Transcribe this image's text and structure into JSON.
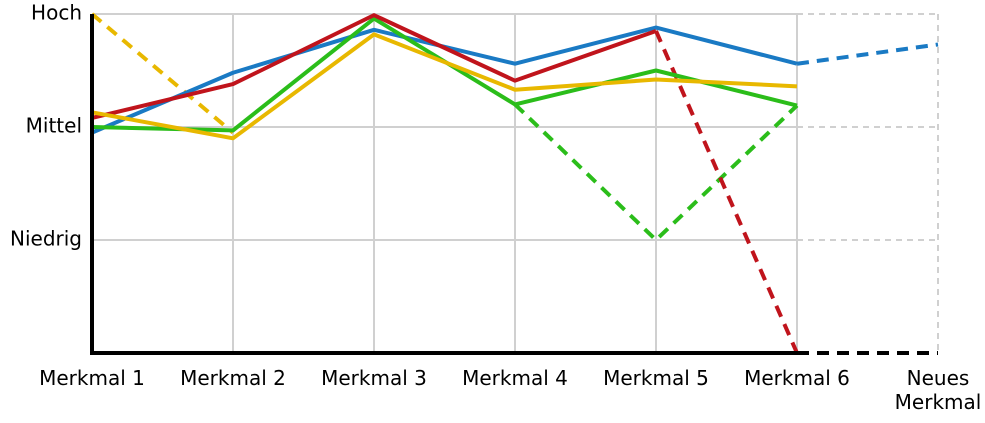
{
  "chart_data": {
    "type": "line",
    "categories": [
      "Merkmal 1",
      "Merkmal 2",
      "Merkmal 3",
      "Merkmal 4",
      "Merkmal 5",
      "Merkmal 6",
      "Neues Merkmal"
    ],
    "ylim": [
      0,
      3
    ],
    "yticks": [
      {
        "value": 1,
        "label": "Niedrig"
      },
      {
        "value": 2,
        "label": "Mittel"
      },
      {
        "value": 3,
        "label": "Hoch"
      }
    ],
    "grid": true,
    "series": [
      {
        "color": "#e8b800",
        "dashed": true,
        "values": [
          3.0,
          1.95,
          null,
          null,
          null,
          null,
          null
        ]
      },
      {
        "color": "#2bbd1a",
        "dashed": true,
        "values": [
          null,
          null,
          null,
          2.2,
          1.0,
          2.19,
          null
        ]
      },
      {
        "color": "#c0141c",
        "dashed": true,
        "values": [
          null,
          null,
          null,
          null,
          2.85,
          0,
          null
        ]
      },
      {
        "color": "#1a7ac4",
        "dashed": true,
        "values": [
          null,
          null,
          null,
          null,
          null,
          2.56,
          2.73
        ]
      },
      {
        "color": "#1a7ac4",
        "values": [
          1.95,
          2.48,
          2.86,
          2.56,
          2.88,
          2.56,
          null
        ]
      },
      {
        "color": "#2bbd1a",
        "values": [
          2.0,
          1.97,
          2.96,
          2.2,
          2.5,
          2.19,
          null
        ]
      },
      {
        "color": "#c0141c",
        "values": [
          2.08,
          2.38,
          2.99,
          2.41,
          2.85,
          null,
          null
        ]
      },
      {
        "color": "#e8b800",
        "values": [
          2.13,
          1.9,
          2.82,
          2.33,
          2.42,
          2.36,
          null
        ]
      }
    ]
  }
}
